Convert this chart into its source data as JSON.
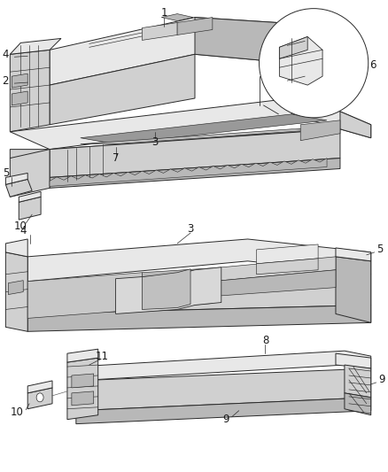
{
  "background_color": "#ffffff",
  "line_color": "#2a2a2a",
  "fig_width": 4.38,
  "fig_height": 5.33,
  "dpi": 100,
  "font_size": 8.5,
  "label_color": "#1a1a1a",
  "gray_light": "#e8e8e8",
  "gray_mid": "#d0d0d0",
  "gray_dark": "#b8b8b8",
  "gray_very_dark": "#999999"
}
